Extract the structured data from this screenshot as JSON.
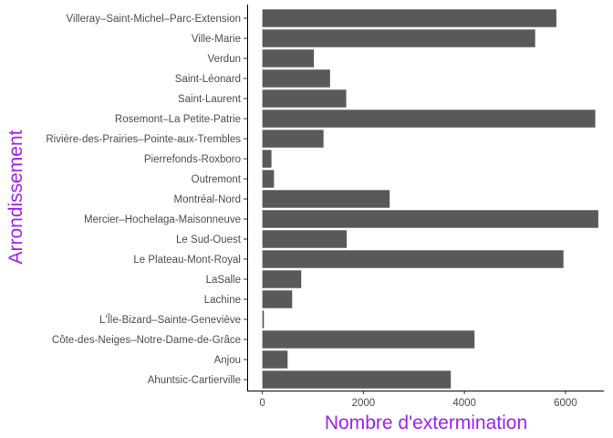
{
  "chart_data": {
    "type": "bar",
    "orientation": "horizontal",
    "xlabel": "Nombre d'extermination",
    "ylabel": "Arrondissement",
    "title_color": "#a020f0",
    "bar_color": "#595959",
    "grid": false,
    "xlim": [
      -300,
      6760
    ],
    "x_ticks": [
      0,
      2000,
      4000,
      6000
    ],
    "categories": [
      "Villeray–Saint-Michel–Parc-Extension",
      "Ville-Marie",
      "Verdun",
      "Saint-Léonard",
      "Saint-Laurent",
      "Rosemont–La Petite-Patrie",
      "Rivière-des-Prairies–Pointe-aux-Trembles",
      "Pierrefonds-Roxboro",
      "Outremont",
      "Montréal-Nord",
      "Mercier–Hochelaga-Maisonneuve",
      "Le Sud-Ouest",
      "Le Plateau-Mont-Royal",
      "LaSalle",
      "Lachine",
      "L'Île-Bizard–Sainte-Geneviève",
      "Côte-des-Neiges–Notre-Dame-de-Grâce",
      "Anjou",
      "Ahuntsic-Cartierville"
    ],
    "values": [
      5820,
      5400,
      1020,
      1340,
      1660,
      6590,
      1210,
      180,
      230,
      2520,
      6650,
      1670,
      5960,
      770,
      590,
      30,
      4200,
      500,
      3730
    ]
  }
}
